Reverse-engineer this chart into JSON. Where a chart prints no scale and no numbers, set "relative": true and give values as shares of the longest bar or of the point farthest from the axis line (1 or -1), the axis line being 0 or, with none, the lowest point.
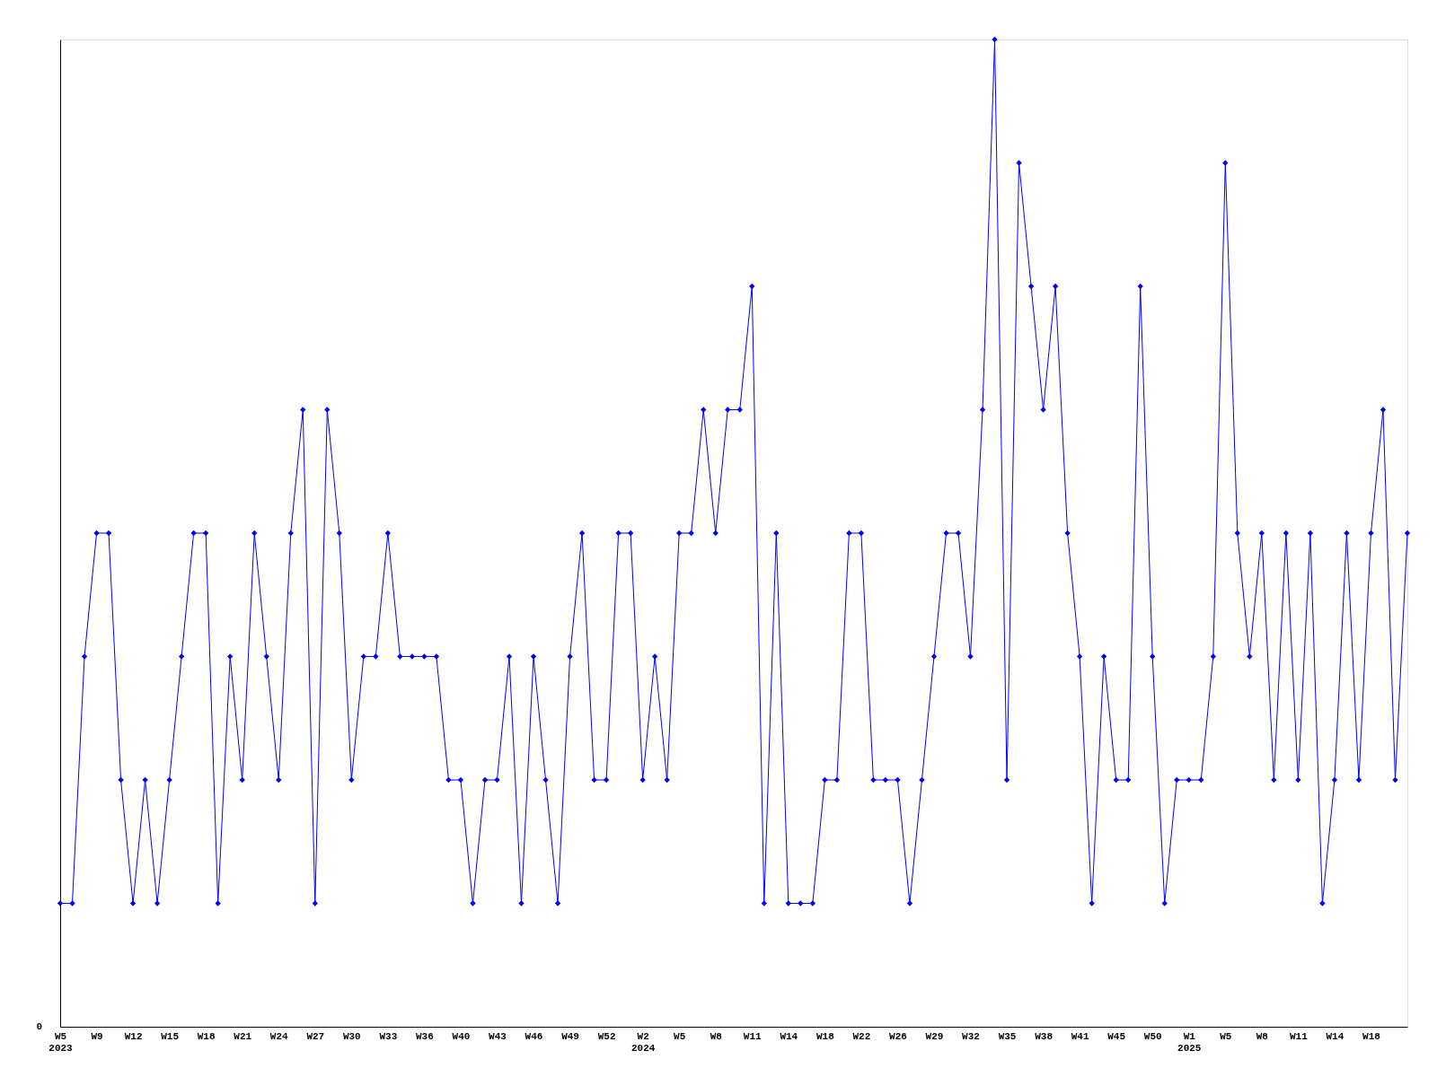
{
  "chart_data": {
    "type": "line",
    "relative": true,
    "categories": [
      "W5\n2023",
      null,
      null,
      "W9",
      null,
      null,
      "W12",
      null,
      null,
      "W15",
      null,
      null,
      "W18",
      null,
      null,
      "W21",
      null,
      null,
      "W24",
      null,
      null,
      "W27",
      null,
      null,
      "W30",
      null,
      null,
      "W33",
      null,
      null,
      "W36",
      null,
      null,
      "W40",
      null,
      null,
      "W43",
      null,
      null,
      "W46",
      null,
      null,
      "W49",
      null,
      null,
      "W52",
      null,
      null,
      "W2\n2024",
      null,
      null,
      "W5",
      null,
      null,
      "W8",
      null,
      null,
      "W11",
      null,
      null,
      "W14",
      null,
      null,
      "W18",
      null,
      null,
      "W22",
      null,
      null,
      "W26",
      null,
      null,
      "W29",
      null,
      null,
      "W32",
      null,
      null,
      "W35",
      null,
      null,
      "W38",
      null,
      null,
      "W41",
      null,
      null,
      "W45",
      null,
      null,
      "W50",
      null,
      null,
      "W1\n2025",
      null,
      null,
      "W5",
      null,
      null,
      "W8",
      null,
      null,
      "W11",
      null,
      null,
      "W14",
      null,
      null,
      "W18",
      null,
      null,
      null
    ],
    "series": [
      {
        "color": "#0000ff",
        "values": [
          0.125,
          0.125,
          0.375,
          0.5,
          0.5,
          0.25,
          0.125,
          0.25,
          0.125,
          0.25,
          0.375,
          0.5,
          0.5,
          0.125,
          0.375,
          0.25,
          0.5,
          0.375,
          0.25,
          0.5,
          0.625,
          0.125,
          0.625,
          0.5,
          0.25,
          0.375,
          0.375,
          0.5,
          0.375,
          0.375,
          0.375,
          0.375,
          0.25,
          0.25,
          0.125,
          0.25,
          0.25,
          0.375,
          0.125,
          0.375,
          0.25,
          0.125,
          0.375,
          0.5,
          0.25,
          0.25,
          0.5,
          0.5,
          0.25,
          0.375,
          0.25,
          0.5,
          0.5,
          0.625,
          0.5,
          0.625,
          0.625,
          0.75,
          0.125,
          0.5,
          0.125,
          0.125,
          0.125,
          0.25,
          0.25,
          0.5,
          0.5,
          0.25,
          0.25,
          0.25,
          0.125,
          0.25,
          0.375,
          0.5,
          0.5,
          0.375,
          0.625,
          1,
          0.25,
          0.875,
          0.75,
          0.625,
          0.75,
          0.5,
          0.375,
          0.125,
          0.375,
          0.25,
          0.25,
          0.75,
          0.375,
          0.125,
          0.25,
          0.25,
          0.25,
          0.375,
          0.875,
          0.5,
          0.375,
          0.5,
          0.25,
          0.5,
          0.25,
          0.5,
          0.125,
          0.25,
          0.5,
          0.25,
          0.5,
          0.625,
          0.25,
          0.5
        ]
      }
    ],
    "annotations": [
      "0"
    ],
    "marker": "diamond",
    "line_style": "solid",
    "grid": false
  }
}
